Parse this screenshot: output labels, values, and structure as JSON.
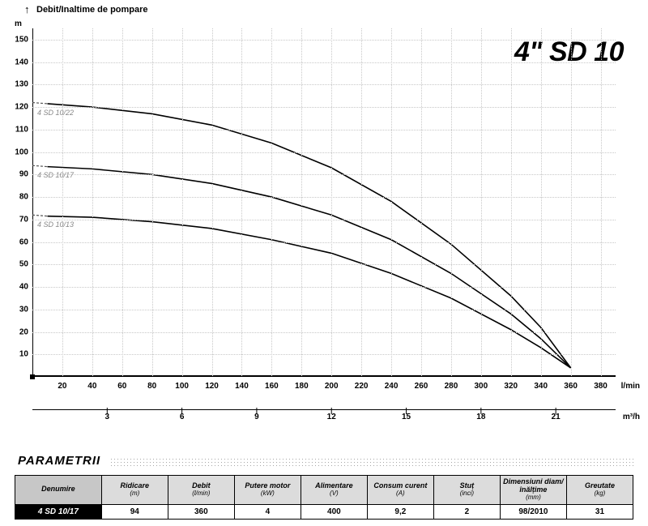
{
  "header": {
    "top_label": "Debit/Inaltime de pompare",
    "y_unit": "m",
    "title": "4\" SD 10"
  },
  "chart": {
    "type": "line",
    "background_color": "#ffffff",
    "grid_color": "#c8c8c8",
    "axis_color": "#000000",
    "line_color": "#000000",
    "line_width": 1.6,
    "title_fontsize": 34,
    "tick_fontsize": 10,
    "series_label_color": "#888888",
    "x": {
      "min": 0,
      "max": 390,
      "tick_start": 20,
      "tick_step": 20,
      "tick_end": 380,
      "label": "l/min"
    },
    "x2": {
      "ticks": [
        3,
        6,
        9,
        12,
        15,
        18,
        21
      ],
      "label": "m³/h",
      "conversion": 16.6667
    },
    "y": {
      "min": 0,
      "max": 155,
      "tick_start": 10,
      "tick_step": 10,
      "tick_end": 150,
      "label": "m"
    },
    "series": [
      {
        "name": "4 SD 10/22",
        "dash_start": {
          "x": 0,
          "y": 122
        },
        "points": [
          {
            "x": 10,
            "y": 121.5
          },
          {
            "x": 40,
            "y": 120
          },
          {
            "x": 80,
            "y": 117
          },
          {
            "x": 120,
            "y": 112
          },
          {
            "x": 160,
            "y": 104
          },
          {
            "x": 200,
            "y": 93
          },
          {
            "x": 240,
            "y": 78
          },
          {
            "x": 280,
            "y": 59
          },
          {
            "x": 320,
            "y": 36
          },
          {
            "x": 340,
            "y": 22
          },
          {
            "x": 360,
            "y": 4
          }
        ]
      },
      {
        "name": "4 SD 10/17",
        "dash_start": {
          "x": 0,
          "y": 94
        },
        "points": [
          {
            "x": 10,
            "y": 93.5
          },
          {
            "x": 40,
            "y": 92.5
          },
          {
            "x": 80,
            "y": 90
          },
          {
            "x": 120,
            "y": 86
          },
          {
            "x": 160,
            "y": 80
          },
          {
            "x": 200,
            "y": 72
          },
          {
            "x": 240,
            "y": 61
          },
          {
            "x": 280,
            "y": 46
          },
          {
            "x": 320,
            "y": 28
          },
          {
            "x": 340,
            "y": 17
          },
          {
            "x": 360,
            "y": 4
          }
        ]
      },
      {
        "name": "4 SD 10/13",
        "dash_start": {
          "x": 0,
          "y": 72
        },
        "points": [
          {
            "x": 10,
            "y": 71.5
          },
          {
            "x": 40,
            "y": 71
          },
          {
            "x": 80,
            "y": 69
          },
          {
            "x": 120,
            "y": 66
          },
          {
            "x": 160,
            "y": 61
          },
          {
            "x": 200,
            "y": 55
          },
          {
            "x": 240,
            "y": 46
          },
          {
            "x": 280,
            "y": 35
          },
          {
            "x": 320,
            "y": 21
          },
          {
            "x": 340,
            "y": 13
          },
          {
            "x": 360,
            "y": 4
          }
        ]
      }
    ]
  },
  "params": {
    "title": "PARAMETRII",
    "columns": [
      {
        "hdr": "Denumire",
        "sub": ""
      },
      {
        "hdr": "Ridicare",
        "sub": "(m)"
      },
      {
        "hdr": "Debit",
        "sub": "(l/min)"
      },
      {
        "hdr": "Putere motor",
        "sub": "(kW)"
      },
      {
        "hdr": "Alimentare",
        "sub": "(V)"
      },
      {
        "hdr": "Consum curent",
        "sub": "(A)"
      },
      {
        "hdr": "Stuț",
        "sub": "(inci)"
      },
      {
        "hdr": "Dimensiuni diam/înălțime",
        "sub": "(mm)"
      },
      {
        "hdr": "Greutate",
        "sub": "(kg)"
      }
    ],
    "rows": [
      {
        "name": "4 SD 10/17",
        "cells": [
          "94",
          "360",
          "4",
          "400",
          "9,2",
          "2",
          "98/2010",
          "31"
        ]
      }
    ]
  }
}
